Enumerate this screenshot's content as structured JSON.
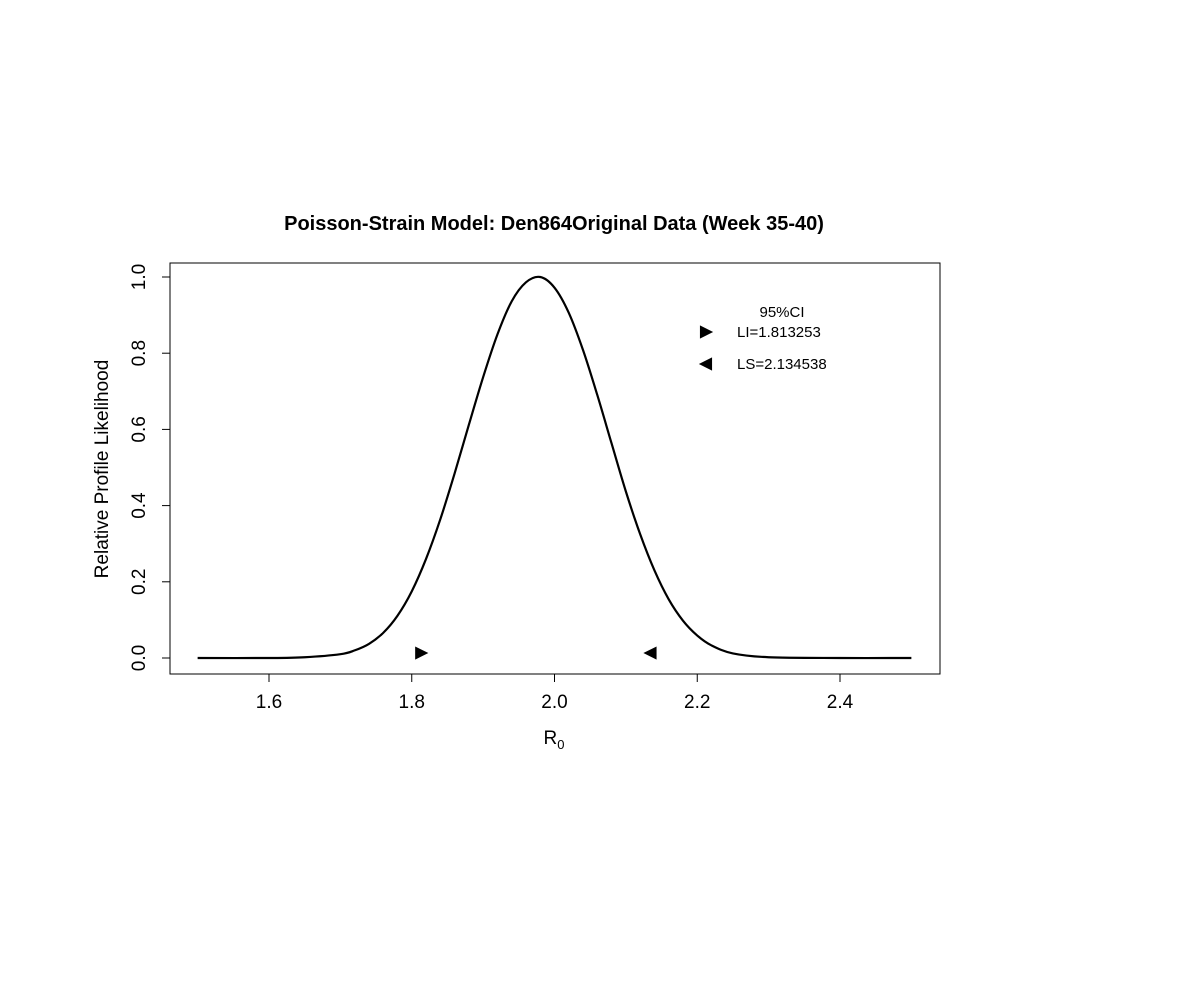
{
  "chart_data": {
    "type": "line",
    "title": "Poisson-Strain Model: Den864Original Data (Week 35-40)",
    "xlabel": {
      "main": "R",
      "subscript": "0"
    },
    "ylabel": "Relative Profile Likelihood",
    "xlim": [
      1.5,
      2.5
    ],
    "ylim": [
      0.0,
      1.0
    ],
    "x_ticks": [
      {
        "value": 1.6,
        "label": "1.6"
      },
      {
        "value": 1.8,
        "label": "1.8"
      },
      {
        "value": 2.0,
        "label": "2.0"
      },
      {
        "value": 2.2,
        "label": "2.2"
      },
      {
        "value": 2.4,
        "label": "2.4"
      }
    ],
    "y_ticks": [
      {
        "value": 0.0,
        "label": "0.0"
      },
      {
        "value": 0.2,
        "label": "0.2"
      },
      {
        "value": 0.4,
        "label": "0.4"
      },
      {
        "value": 0.6,
        "label": "0.6"
      },
      {
        "value": 0.8,
        "label": "0.8"
      },
      {
        "value": 1.0,
        "label": "1.0"
      }
    ],
    "grid": false,
    "legend_position": "top-right",
    "series": [
      {
        "style": "line",
        "color": "#000000",
        "x": [
          1.5,
          1.6,
          1.65,
          1.7,
          1.72,
          1.74,
          1.76,
          1.78,
          1.8,
          1.82,
          1.84,
          1.86,
          1.88,
          1.9,
          1.92,
          1.94,
          1.96,
          1.98,
          2.0,
          2.02,
          2.04,
          2.06,
          2.08,
          2.1,
          2.12,
          2.14,
          2.16,
          2.18,
          2.2,
          2.22,
          2.25,
          2.3,
          2.4,
          2.5
        ],
        "y": [
          0.0,
          0.0,
          0.002,
          0.01,
          0.02,
          0.037,
          0.066,
          0.111,
          0.175,
          0.26,
          0.364,
          0.484,
          0.612,
          0.737,
          0.849,
          0.936,
          0.986,
          1.0,
          0.972,
          0.906,
          0.808,
          0.69,
          0.563,
          0.437,
          0.325,
          0.23,
          0.154,
          0.098,
          0.059,
          0.033,
          0.012,
          0.002,
          0.0,
          0.0
        ]
      }
    ],
    "markers": [
      {
        "name": "LI",
        "x": 1.813253,
        "y": 0.013,
        "shape": "triangle-right"
      },
      {
        "name": "LS",
        "x": 2.134538,
        "y": 0.013,
        "shape": "triangle-left"
      }
    ],
    "legend": {
      "title": "95%CI",
      "entries": [
        {
          "label": "LI=1.813253",
          "shape": "triangle-right"
        },
        {
          "label": "LS=2.134538",
          "shape": "triangle-left"
        }
      ]
    }
  }
}
